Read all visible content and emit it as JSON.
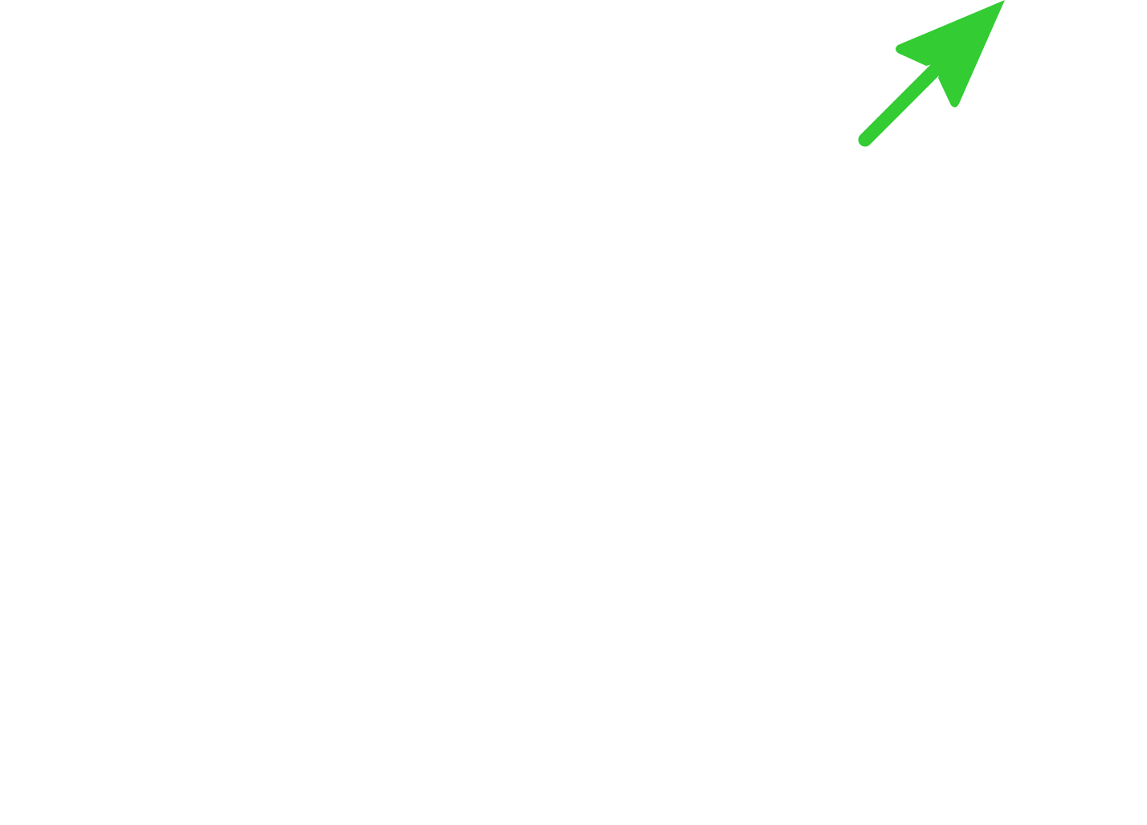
{
  "canvas": {
    "background_color": "#ffffff"
  },
  "arrow": {
    "icon": "arrow-up-right-icon",
    "color": "#33cc33",
    "direction": "up-right"
  }
}
